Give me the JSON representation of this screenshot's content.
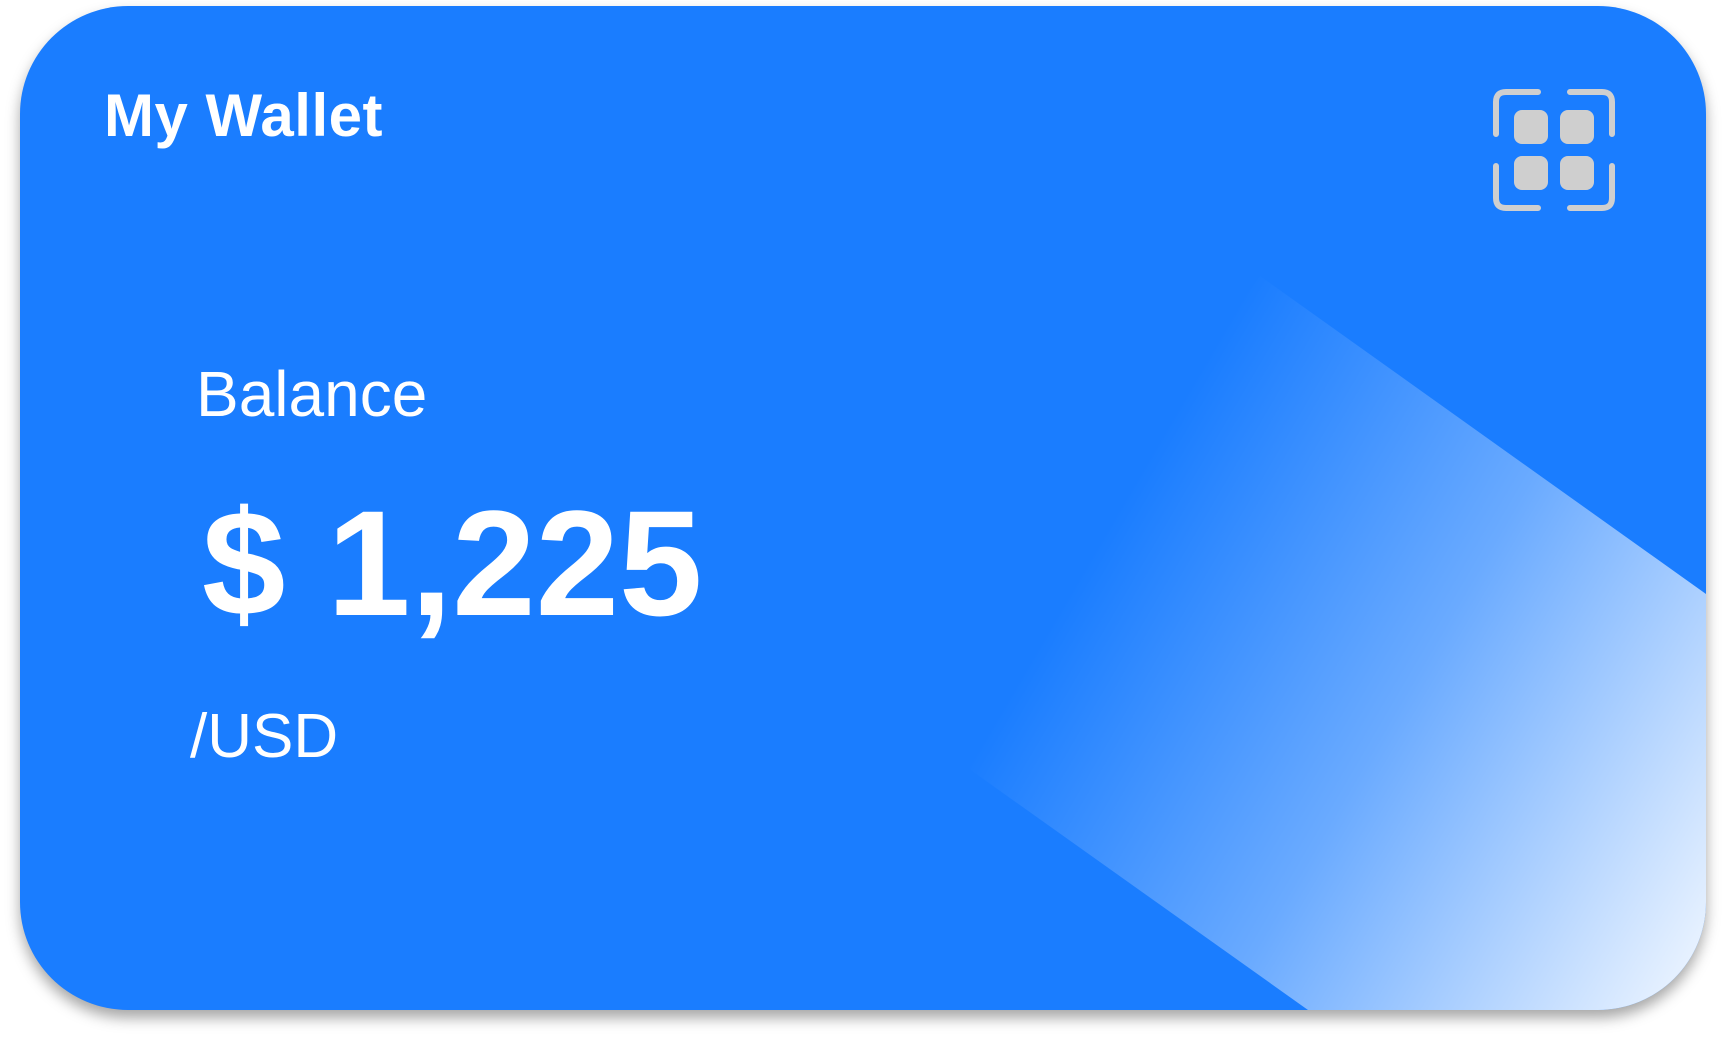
{
  "wallet": {
    "title": "My Wallet",
    "balance_label": "Balance",
    "balance_amount": "$ 1,225",
    "currency": "/USD",
    "action_icon": "qr-scan-icon"
  },
  "colors": {
    "card_background": "#1a7dff",
    "text": "#ffffff",
    "icon": "#cfcfcf"
  }
}
